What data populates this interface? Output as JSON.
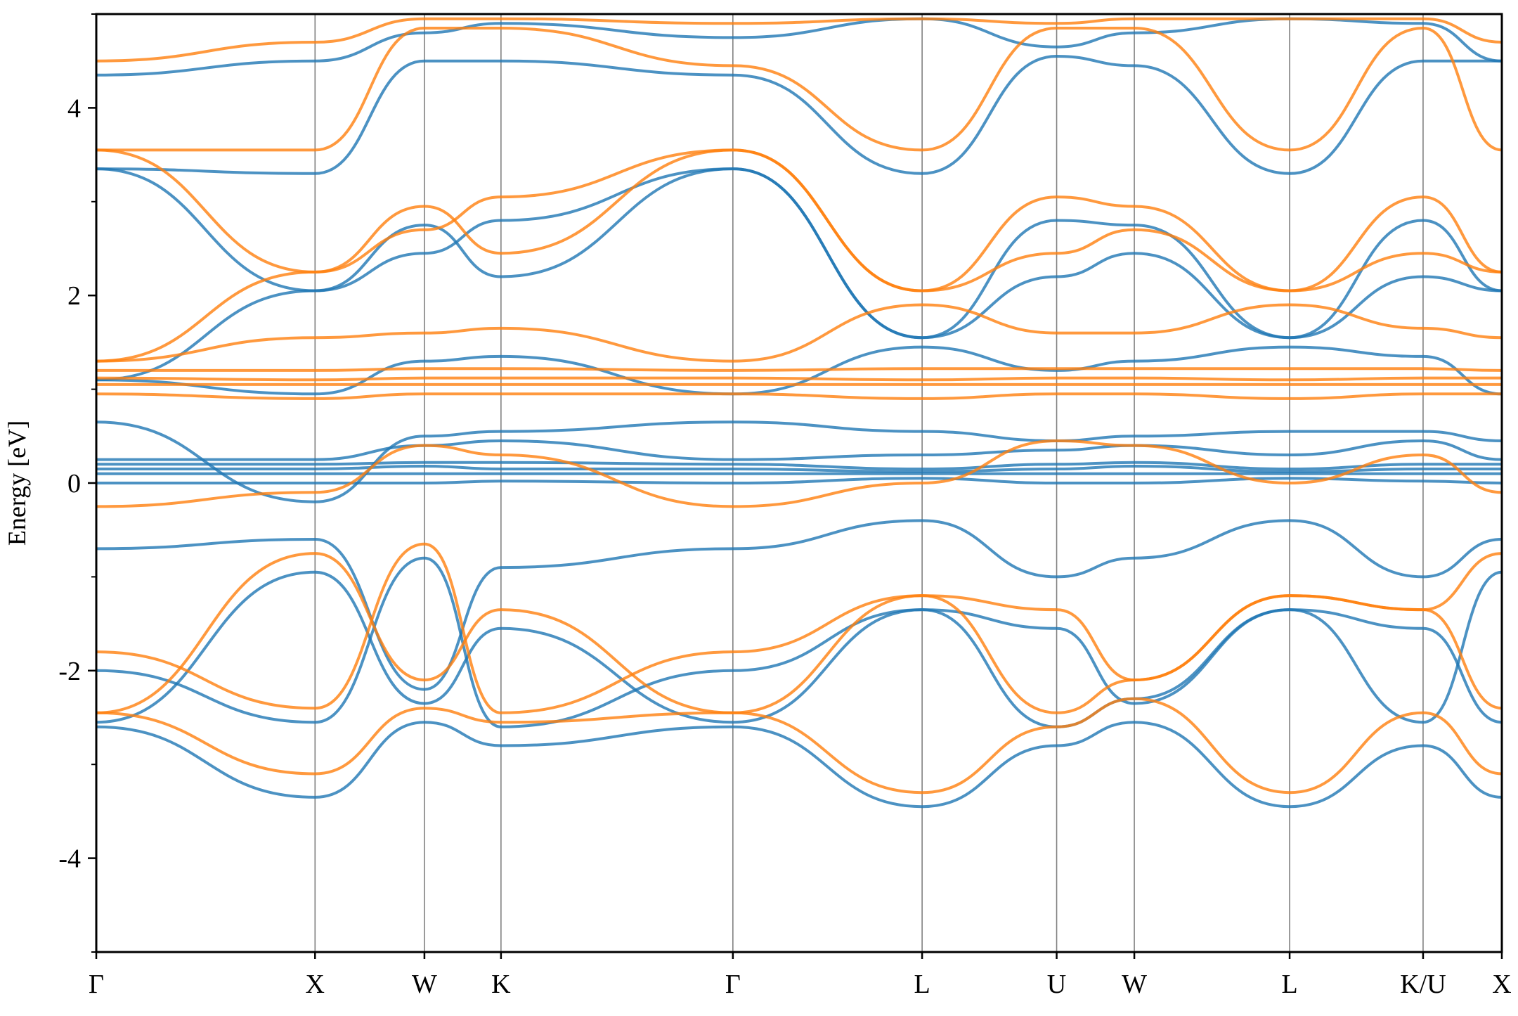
{
  "chart_data": {
    "type": "line",
    "title": "",
    "xlabel": "",
    "ylabel": "Energy [eV]",
    "ylim": [
      -5,
      5
    ],
    "xlim": [
      0,
      12.85
    ],
    "grid": false,
    "legend": "none",
    "y_ticks": [
      -4,
      -2,
      0,
      2,
      4
    ],
    "y_minor_ticks": [
      -5,
      -3,
      -1,
      1,
      3,
      5
    ],
    "k_points": [
      {
        "label": "Γ",
        "x": 0.0
      },
      {
        "label": "X",
        "x": 2.0
      },
      {
        "label": "W",
        "x": 3.0
      },
      {
        "label": "K",
        "x": 3.7
      },
      {
        "label": "Γ",
        "x": 5.82
      },
      {
        "label": "L",
        "x": 7.55
      },
      {
        "label": "U",
        "x": 8.78
      },
      {
        "label": "W",
        "x": 9.49
      },
      {
        "label": "L",
        "x": 10.91
      },
      {
        "label": "K/U",
        "x": 12.13
      },
      {
        "label": "X",
        "x": 12.85
      }
    ],
    "colors": {
      "spin_up": "#1f77b4",
      "spin_down": "#ff7f0e",
      "axis": "#000000",
      "kpoint_line": "#808080"
    },
    "series": [
      {
        "color": "spin_up",
        "y": [
          -2.6,
          -3.35,
          -2.55,
          -2.8,
          -2.6,
          -3.45,
          -2.8,
          -2.55,
          -3.45,
          -2.8,
          -3.35
        ]
      },
      {
        "color": "spin_up",
        "y": [
          -2.55,
          -0.95,
          -2.35,
          -1.55,
          -2.55,
          -1.35,
          -2.6,
          -2.3,
          -1.35,
          -2.55,
          -0.95
        ]
      },
      {
        "color": "spin_up",
        "y": [
          -2.0,
          -2.55,
          -0.8,
          -2.6,
          -2.0,
          -1.35,
          -1.55,
          -2.35,
          -1.35,
          -1.55,
          -2.55
        ]
      },
      {
        "color": "spin_up",
        "y": [
          -0.7,
          -0.6,
          -2.2,
          -0.9,
          -0.7,
          -0.4,
          -1.0,
          -0.8,
          -0.4,
          -1.0,
          -0.6
        ]
      },
      {
        "color": "spin_up",
        "y": [
          0.0,
          0.0,
          0.0,
          0.02,
          0.0,
          0.05,
          0.0,
          0.0,
          0.05,
          0.02,
          0.0
        ]
      },
      {
        "color": "spin_up",
        "y": [
          0.1,
          0.1,
          0.1,
          0.1,
          0.1,
          0.1,
          0.1,
          0.1,
          0.1,
          0.1,
          0.1
        ]
      },
      {
        "color": "spin_up",
        "y": [
          0.15,
          0.15,
          0.18,
          0.15,
          0.15,
          0.12,
          0.15,
          0.18,
          0.12,
          0.15,
          0.15
        ]
      },
      {
        "color": "spin_up",
        "y": [
          0.2,
          0.2,
          0.22,
          0.22,
          0.2,
          0.15,
          0.2,
          0.22,
          0.15,
          0.2,
          0.2
        ]
      },
      {
        "color": "spin_up",
        "y": [
          0.25,
          0.25,
          0.4,
          0.45,
          0.25,
          0.3,
          0.35,
          0.4,
          0.3,
          0.45,
          0.25
        ]
      },
      {
        "color": "spin_up",
        "y": [
          0.65,
          -0.2,
          0.5,
          0.55,
          0.65,
          0.55,
          0.45,
          0.5,
          0.55,
          0.55,
          0.45
        ]
      },
      {
        "color": "spin_up",
        "y": [
          1.1,
          0.95,
          1.3,
          1.35,
          0.95,
          1.45,
          1.2,
          1.3,
          1.45,
          1.35,
          0.95
        ]
      },
      {
        "color": "spin_up",
        "y": [
          1.1,
          2.05,
          2.45,
          2.8,
          3.35,
          1.55,
          2.2,
          2.45,
          1.55,
          2.8,
          2.05
        ]
      },
      {
        "color": "spin_up",
        "y": [
          3.35,
          2.05,
          2.75,
          2.2,
          3.35,
          1.55,
          2.8,
          2.75,
          1.55,
          2.2,
          2.05
        ]
      },
      {
        "color": "spin_up",
        "y": [
          3.35,
          3.3,
          4.5,
          4.5,
          4.35,
          3.3,
          4.55,
          4.45,
          3.3,
          4.5,
          4.5
        ]
      },
      {
        "color": "spin_up",
        "y": [
          4.35,
          4.5,
          4.8,
          4.9,
          4.75,
          4.95,
          4.65,
          4.8,
          4.95,
          4.9,
          4.5
        ]
      },
      {
        "color": "spin_down",
        "y": [
          -2.45,
          -3.1,
          -2.4,
          -2.55,
          -2.45,
          -3.3,
          -2.6,
          -2.3,
          -3.3,
          -2.45,
          -3.1
        ]
      },
      {
        "color": "spin_down",
        "y": [
          -2.45,
          -0.75,
          -2.1,
          -1.35,
          -2.45,
          -1.2,
          -2.45,
          -2.1,
          -1.2,
          -1.35,
          -0.75
        ]
      },
      {
        "color": "spin_down",
        "y": [
          -1.8,
          -2.4,
          -0.65,
          -2.45,
          -1.8,
          -1.2,
          -1.35,
          -2.1,
          -1.2,
          -1.35,
          -2.4
        ]
      },
      {
        "color": "spin_down",
        "y": [
          -0.25,
          -0.1,
          0.4,
          0.3,
          -0.25,
          0.0,
          0.45,
          0.4,
          0.0,
          0.3,
          -0.1
        ]
      },
      {
        "color": "spin_down",
        "y": [
          0.95,
          0.9,
          0.95,
          0.95,
          0.95,
          0.9,
          0.95,
          0.95,
          0.9,
          0.95,
          0.95
        ]
      },
      {
        "color": "spin_down",
        "y": [
          1.05,
          1.05,
          1.05,
          1.05,
          1.05,
          1.05,
          1.05,
          1.05,
          1.05,
          1.05,
          1.05
        ]
      },
      {
        "color": "spin_down",
        "y": [
          1.12,
          1.1,
          1.12,
          1.12,
          1.12,
          1.1,
          1.12,
          1.12,
          1.1,
          1.12,
          1.12
        ]
      },
      {
        "color": "spin_down",
        "y": [
          1.2,
          1.2,
          1.22,
          1.22,
          1.2,
          1.22,
          1.22,
          1.22,
          1.22,
          1.22,
          1.2
        ]
      },
      {
        "color": "spin_down",
        "y": [
          1.3,
          1.55,
          1.6,
          1.65,
          1.3,
          1.9,
          1.6,
          1.6,
          1.9,
          1.65,
          1.55
        ]
      },
      {
        "color": "spin_down",
        "y": [
          1.3,
          2.25,
          2.7,
          3.05,
          3.55,
          2.05,
          2.45,
          2.7,
          2.05,
          3.05,
          2.25
        ]
      },
      {
        "color": "spin_down",
        "y": [
          3.55,
          2.25,
          2.95,
          2.45,
          3.55,
          2.05,
          3.05,
          2.95,
          2.05,
          2.45,
          2.25
        ]
      },
      {
        "color": "spin_down",
        "y": [
          3.55,
          3.55,
          4.85,
          4.85,
          4.45,
          3.55,
          4.85,
          4.85,
          3.55,
          4.85,
          3.55
        ]
      },
      {
        "color": "spin_down",
        "y": [
          4.5,
          4.7,
          4.95,
          4.95,
          4.9,
          4.95,
          4.9,
          4.95,
          4.95,
          4.95,
          4.7
        ]
      }
    ]
  }
}
